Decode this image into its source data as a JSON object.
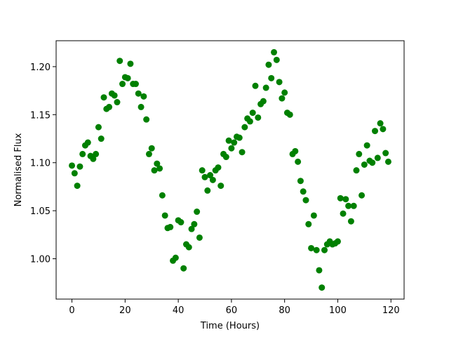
{
  "chart_data": {
    "type": "scatter",
    "x_label": "Time (Hours)",
    "y_label": "Normalised Flux",
    "color": "green",
    "xlim": [
      -5.95,
      124.95
    ],
    "ylim": [
      0.958,
      1.227
    ],
    "xticks": [
      0,
      20,
      40,
      60,
      80,
      100,
      120
    ],
    "yticks": [
      {
        "value": 1.0,
        "label": "1.00"
      },
      {
        "value": 1.05,
        "label": "1.05"
      },
      {
        "value": 1.1,
        "label": "1.10"
      },
      {
        "value": 1.15,
        "label": "1.15"
      },
      {
        "value": 1.2,
        "label": "1.20"
      }
    ],
    "x": [
      0,
      1,
      2,
      3,
      4,
      5,
      6,
      7,
      8,
      9,
      10,
      11,
      12,
      13,
      14,
      15,
      16,
      17,
      18,
      19,
      20,
      21,
      22,
      23,
      24,
      25,
      26,
      27,
      28,
      29,
      30,
      31,
      32,
      33,
      34,
      35,
      36,
      37,
      38,
      39,
      40,
      41,
      42,
      43,
      44,
      45,
      46,
      47,
      48,
      49,
      50,
      51,
      52,
      53,
      54,
      55,
      56,
      57,
      58,
      59,
      60,
      61,
      62,
      63,
      64,
      65,
      66,
      67,
      68,
      69,
      70,
      71,
      72,
      73,
      74,
      75,
      76,
      77,
      78,
      79,
      80,
      81,
      82,
      83,
      84,
      85,
      86,
      87,
      88,
      89,
      90,
      91,
      92,
      93,
      94,
      95,
      96,
      97,
      98,
      99,
      100,
      101,
      102,
      103,
      104,
      105,
      106,
      107,
      108,
      109,
      110,
      111,
      112,
      113,
      114,
      115,
      116,
      117,
      118,
      119
    ],
    "values": [
      1.097,
      1.089,
      1.076,
      1.096,
      1.109,
      1.118,
      1.121,
      1.107,
      1.104,
      1.109,
      1.137,
      1.125,
      1.168,
      1.156,
      1.158,
      1.172,
      1.17,
      1.163,
      1.206,
      1.182,
      1.189,
      1.188,
      1.203,
      1.182,
      1.182,
      1.172,
      1.158,
      1.169,
      1.145,
      1.109,
      1.115,
      1.092,
      1.099,
      1.094,
      1.066,
      1.045,
      1.032,
      1.033,
      0.998,
      1.001,
      1.04,
      1.038,
      0.99,
      1.015,
      1.012,
      1.031,
      1.036,
      1.049,
      1.022,
      1.092,
      1.085,
      1.071,
      1.087,
      1.082,
      1.092,
      1.095,
      1.076,
      1.109,
      1.106,
      1.123,
      1.115,
      1.121,
      1.127,
      1.126,
      1.111,
      1.137,
      1.146,
      1.143,
      1.152,
      1.18,
      1.147,
      1.161,
      1.164,
      1.178,
      1.202,
      1.188,
      1.215,
      1.207,
      1.184,
      1.167,
      1.173,
      1.152,
      1.15,
      1.109,
      1.112,
      1.101,
      1.081,
      1.07,
      1.061,
      1.036,
      1.011,
      1.045,
      1.009,
      0.988,
      0.97,
      1.009,
      1.015,
      1.018,
      1.015,
      1.016,
      1.018,
      1.063,
      1.047,
      1.062,
      1.055,
      1.039,
      1.055,
      1.092,
      1.109,
      1.066,
      1.098,
      1.118,
      1.102,
      1.1,
      1.133,
      1.105,
      1.141,
      1.135,
      1.11,
      1.101
    ]
  }
}
